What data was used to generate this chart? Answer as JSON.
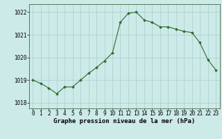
{
  "x": [
    0,
    1,
    2,
    3,
    4,
    5,
    6,
    7,
    8,
    9,
    10,
    11,
    12,
    13,
    14,
    15,
    16,
    17,
    18,
    19,
    20,
    21,
    22,
    23
  ],
  "y": [
    1019.0,
    1018.85,
    1018.65,
    1018.4,
    1018.7,
    1018.7,
    1019.0,
    1019.3,
    1019.55,
    1019.85,
    1020.2,
    1021.55,
    1021.95,
    1022.0,
    1021.65,
    1021.55,
    1021.35,
    1021.35,
    1021.25,
    1021.15,
    1021.1,
    1020.65,
    1019.9,
    1019.45
  ],
  "line_color": "#2d6a2d",
  "marker_color": "#2d6a2d",
  "bg_color": "#cceae8",
  "grid_color": "#aacccc",
  "xlabel": "Graphe pression niveau de la mer (hPa)",
  "ylim": [
    1017.75,
    1022.35
  ],
  "xlim": [
    -0.5,
    23.5
  ],
  "yticks": [
    1018,
    1019,
    1020,
    1021,
    1022
  ],
  "xtick_labels": [
    "0",
    "1",
    "2",
    "3",
    "4",
    "5",
    "6",
    "7",
    "8",
    "9",
    "10",
    "11",
    "12",
    "13",
    "14",
    "15",
    "16",
    "17",
    "18",
    "19",
    "20",
    "21",
    "22",
    "23"
  ],
  "axis_fontsize": 5.5,
  "label_fontsize": 6.5
}
